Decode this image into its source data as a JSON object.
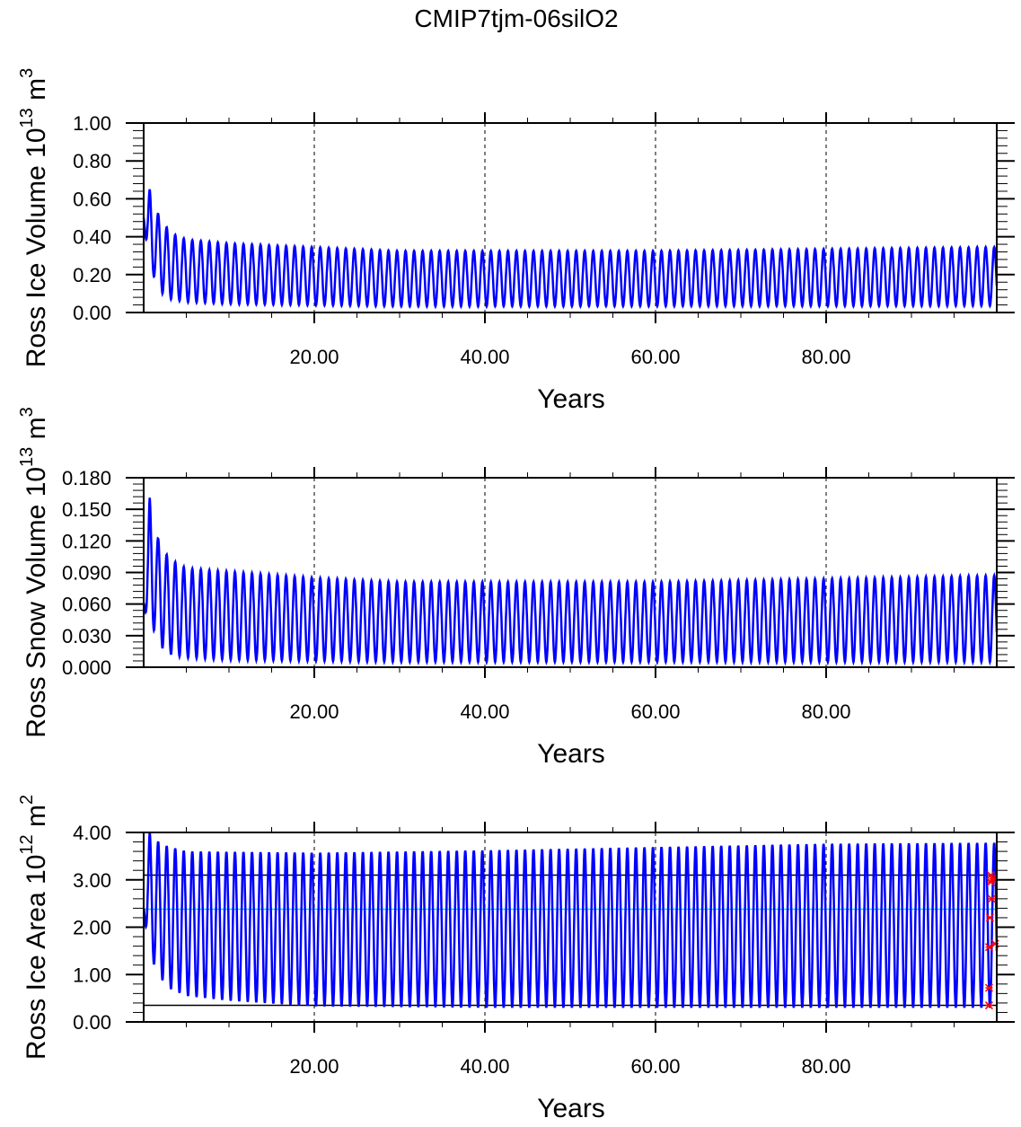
{
  "chart_data": {
    "title": "CMIP7tjm-06silO2",
    "panels": [
      {
        "type": "line",
        "ylabel": "Ross Ice Volume 10",
        "ylabel_exp": "13",
        "ylabel_unit": " m",
        "ylabel_unit_exp": "3",
        "xlabel": "Years",
        "xlim": [
          0,
          100
        ],
        "ylim": [
          0,
          1.0
        ],
        "yticks": [
          "0.00",
          "0.20",
          "0.40",
          "0.60",
          "0.80",
          "1.00"
        ],
        "ytick_values": [
          0,
          0.2,
          0.4,
          0.6,
          0.8,
          1.0
        ],
        "xticks": [
          "20.00",
          "40.00",
          "60.00",
          "80.00"
        ],
        "xtick_values": [
          20,
          40,
          60,
          80
        ],
        "series_color": "#0000ff",
        "start_value": 0.5,
        "annual_max": [
          [
            0.7,
            0.65
          ],
          [
            1.7,
            0.52
          ],
          [
            2.7,
            0.45
          ],
          [
            3.7,
            0.41
          ],
          [
            5,
            0.385
          ],
          [
            10,
            0.365
          ],
          [
            20,
            0.345
          ],
          [
            30,
            0.325
          ],
          [
            60,
            0.325
          ],
          [
            99,
            0.345
          ]
        ],
        "annual_min": [
          [
            1.2,
            0.19
          ],
          [
            2.2,
            0.1
          ],
          [
            3.2,
            0.07
          ],
          [
            5,
            0.055
          ],
          [
            10,
            0.045
          ],
          [
            30,
            0.032
          ],
          [
            99,
            0.035
          ]
        ],
        "hlines": [],
        "markers": []
      },
      {
        "type": "line",
        "ylabel": "Ross Snow Volume 10",
        "ylabel_exp": "13",
        "ylabel_unit": " m",
        "ylabel_unit_exp": "3",
        "xlabel": "Years",
        "xlim": [
          0,
          100
        ],
        "ylim": [
          0,
          0.18
        ],
        "yticks": [
          "0.000",
          "0.030",
          "0.060",
          "0.090",
          "0.120",
          "0.150",
          "0.180"
        ],
        "ytick_values": [
          0,
          0.03,
          0.06,
          0.09,
          0.12,
          0.15,
          0.18
        ],
        "xticks": [
          "20.00",
          "40.00",
          "60.00",
          "80.00"
        ],
        "xtick_values": [
          20,
          40,
          60,
          80
        ],
        "series_color": "#0000ff",
        "start_value": 0.06,
        "annual_max": [
          [
            0.7,
            0.161
          ],
          [
            1.7,
            0.122
          ],
          [
            2.7,
            0.107
          ],
          [
            3.7,
            0.1
          ],
          [
            5,
            0.094
          ],
          [
            10,
            0.091
          ],
          [
            20,
            0.085
          ],
          [
            30,
            0.081
          ],
          [
            60,
            0.081
          ],
          [
            99,
            0.087
          ]
        ],
        "annual_min": [
          [
            1.2,
            0.035
          ],
          [
            2.2,
            0.018
          ],
          [
            3.2,
            0.012
          ],
          [
            5,
            0.009
          ],
          [
            10,
            0.007
          ],
          [
            30,
            0.005
          ],
          [
            99,
            0.005
          ]
        ],
        "hlines": [],
        "markers": []
      },
      {
        "type": "line",
        "ylabel": "Ross Ice Area 10",
        "ylabel_exp": "12",
        "ylabel_unit": " m",
        "ylabel_unit_exp": "2",
        "xlabel": "Years",
        "xlim": [
          0,
          100
        ],
        "ylim": [
          0,
          4.0
        ],
        "yticks": [
          "0.00",
          "1.00",
          "2.00",
          "3.00",
          "4.00"
        ],
        "ytick_values": [
          0,
          1,
          2,
          3,
          4
        ],
        "xticks": [
          "20.00",
          "40.00",
          "60.00",
          "80.00"
        ],
        "xtick_values": [
          20,
          40,
          60,
          80
        ],
        "series_color": "#0000ff",
        "start_value": 2.4,
        "annual_max": [
          [
            0.7,
            4.0
          ],
          [
            2,
            3.75
          ],
          [
            5,
            3.6
          ],
          [
            20,
            3.57
          ],
          [
            40,
            3.62
          ],
          [
            80,
            3.76
          ],
          [
            99,
            3.78
          ]
        ],
        "annual_min": [
          [
            1.1,
            1.25
          ],
          [
            2.1,
            0.9
          ],
          [
            3.1,
            0.7
          ],
          [
            5,
            0.55
          ],
          [
            10,
            0.45
          ],
          [
            20,
            0.33
          ],
          [
            40,
            0.3
          ],
          [
            99,
            0.3
          ]
        ],
        "hlines": [
          {
            "value": 3.1,
            "color": "#000000"
          },
          {
            "value": 0.35,
            "color": "#000000"
          },
          {
            "value": 2.38,
            "color": "#00e5ff"
          }
        ],
        "markers": [
          {
            "x": 99.3,
            "y": 3.1
          },
          {
            "x": 99.5,
            "y": 3.02
          },
          {
            "x": 99.3,
            "y": 2.95
          },
          {
            "x": 99.4,
            "y": 2.6
          },
          {
            "x": 99.2,
            "y": 2.2
          },
          {
            "x": 99.8,
            "y": 1.65
          },
          {
            "x": 99.1,
            "y": 1.58
          },
          {
            "x": 99.1,
            "y": 0.72
          },
          {
            "x": 99.1,
            "y": 0.35
          }
        ],
        "marker_color": "#ff0000"
      }
    ]
  }
}
